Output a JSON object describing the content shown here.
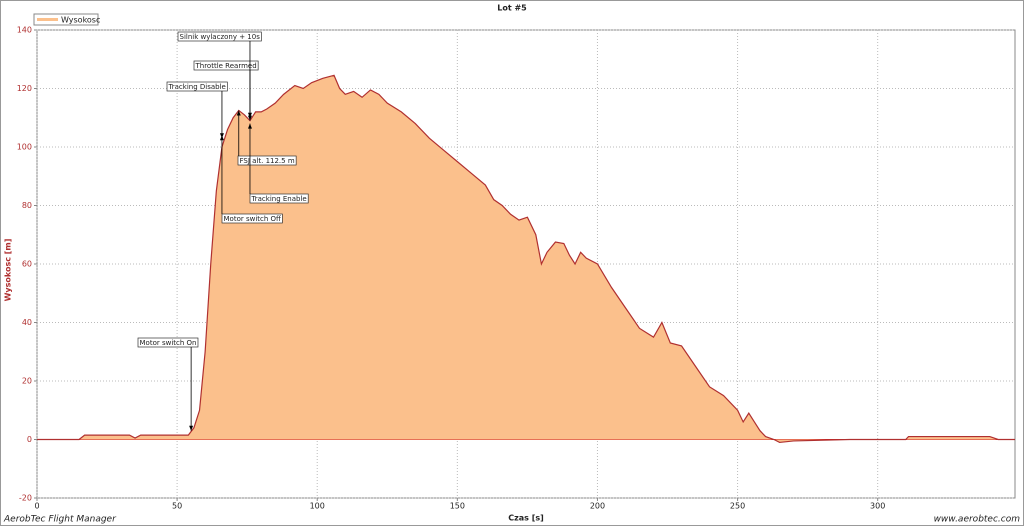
{
  "chart_data": {
    "type": "area",
    "title": "Lot #5",
    "xlabel": "Czas [s]",
    "ylabel": "Wysokosc [m]",
    "xlim": [
      0,
      349
    ],
    "ylim": [
      -20,
      140
    ],
    "xticks": [
      0,
      50,
      100,
      150,
      200,
      250,
      300
    ],
    "yticks": [
      -20,
      0,
      20,
      40,
      60,
      80,
      100,
      120,
      140
    ],
    "grid": true,
    "legend": "top-left",
    "x": [
      0,
      15,
      17,
      33,
      35,
      37,
      50,
      54,
      56,
      58,
      60,
      62,
      64,
      66,
      68,
      70,
      72,
      74,
      76,
      78,
      80,
      82,
      85,
      88,
      92,
      95,
      98,
      102,
      106,
      108,
      110,
      113,
      116,
      119,
      122,
      125,
      130,
      135,
      140,
      145,
      150,
      155,
      160,
      163,
      166,
      169,
      172,
      175,
      178,
      180,
      182,
      185,
      188,
      190,
      192,
      194,
      196,
      200,
      205,
      210,
      215,
      220,
      223,
      226,
      230,
      235,
      240,
      245,
      250,
      252,
      254,
      256,
      258,
      260,
      263,
      265,
      270,
      290,
      310,
      311,
      340,
      343,
      349
    ],
    "series": [
      {
        "name": "Wysokosc",
        "color": "#b03030",
        "fill": "#fbc08c",
        "values": [
          0,
          0,
          1.5,
          1.5,
          0.5,
          1.5,
          1.5,
          1.5,
          4,
          10,
          30,
          60,
          85,
          100,
          106,
          110,
          112.5,
          111,
          109,
          112,
          112,
          113,
          115,
          118,
          121,
          120,
          122,
          123.5,
          124.5,
          120,
          118,
          119,
          117,
          119.5,
          118,
          115,
          112,
          108,
          103,
          99,
          95,
          91,
          87,
          82,
          80,
          77,
          75,
          76,
          70,
          60,
          64,
          67.5,
          67,
          63,
          60,
          64,
          62,
          60,
          52,
          45,
          38,
          35,
          40,
          33,
          32,
          25,
          18,
          15,
          10,
          6,
          9,
          6,
          3,
          1,
          0,
          -1,
          -0.5,
          0,
          0,
          1,
          1,
          0,
          0
        ]
      }
    ],
    "annotations": [
      {
        "text": "Motor switch On",
        "x": 55,
        "y": 3
      },
      {
        "text": "Tracking Disable",
        "x": 66,
        "y": 103
      },
      {
        "text": "Motor switch Off",
        "x": 66,
        "y": 104
      },
      {
        "text": "FSJ alt. 112.5 m",
        "x": 72,
        "y": 112.5
      },
      {
        "text": "Throttle Rearmed",
        "x": 76,
        "y": 109
      },
      {
        "text": "Silnik wylaczony + 10s",
        "x": 76,
        "y": 110
      },
      {
        "text": "Tracking Enable",
        "x": 76,
        "y": 108
      }
    ],
    "footer_left": "AerobTec Flight Manager",
    "footer_right": "www.aerobtec.com"
  }
}
